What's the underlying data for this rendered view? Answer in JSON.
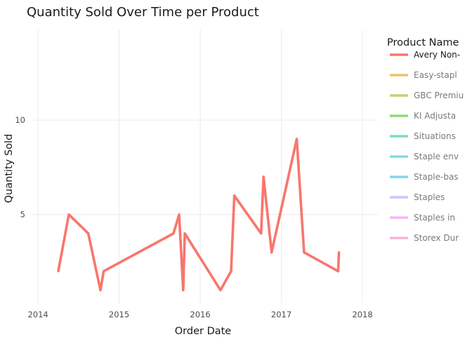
{
  "chart_data": {
    "type": "line",
    "title": "Quantity Sold Over Time per Product",
    "xlabel": "Order Date",
    "ylabel": "Quantity Sold",
    "xlim": [
      2013.93,
      2018.19
    ],
    "ylim": [
      0.3,
      14.8
    ],
    "x_ticks": [
      2014,
      2015,
      2016,
      2017,
      2018
    ],
    "y_ticks": [
      5,
      10
    ],
    "grid": true,
    "legend": {
      "title": "Product Name",
      "position": "right",
      "entries": [
        {
          "label": "Avery Non-",
          "color": "#F8766D",
          "active": true
        },
        {
          "label": "Easy-stapl",
          "color": "#F0C26E",
          "active": false
        },
        {
          "label": "GBC Premiu",
          "color": "#CDCD6E",
          "active": false
        },
        {
          "label": "KI Adjusta",
          "color": "#8BDE72",
          "active": false
        },
        {
          "label": "Situations",
          "color": "#7FDDC0",
          "active": false
        },
        {
          "label": "Staple env",
          "color": "#7FDDE2",
          "active": false
        },
        {
          "label": "Staple-bas",
          "color": "#86D4F0",
          "active": false
        },
        {
          "label": "Staples",
          "color": "#C5C8FA",
          "active": false
        },
        {
          "label": "Staples in",
          "color": "#F4B8F4",
          "active": false
        },
        {
          "label": "Storex Dur",
          "color": "#F8B4DA",
          "active": false
        }
      ]
    },
    "series": [
      {
        "name": "Avery Non-",
        "color": "#F8766D",
        "x": [
          2014.25,
          2014.38,
          2014.62,
          2014.77,
          2014.81,
          2015.67,
          2015.74,
          2015.79,
          2015.81,
          2016.25,
          2016.38,
          2016.42,
          2016.75,
          2016.78,
          2016.88,
          2017.19,
          2017.28,
          2017.7,
          2017.71
        ],
        "y": [
          2,
          5,
          4,
          1,
          2,
          4,
          5,
          1,
          4,
          1,
          2,
          6,
          4,
          7,
          3,
          9,
          3,
          2,
          3
        ]
      }
    ]
  }
}
